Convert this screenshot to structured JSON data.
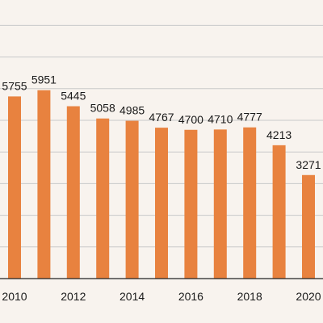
{
  "chart_data": {
    "type": "bar",
    "categories": [
      "2010",
      "2011",
      "2012",
      "2013",
      "2014",
      "2015",
      "2016",
      "2017",
      "2018",
      "2019",
      "2020"
    ],
    "x_tick_labels": [
      "2010",
      "2012",
      "2014",
      "2016",
      "2018",
      "2020"
    ],
    "values": [
      5755,
      5951,
      5445,
      5058,
      4985,
      4767,
      4700,
      4710,
      4777,
      4213,
      3271
    ],
    "data_labels": [
      "5755",
      "5951",
      "5445",
      "5058",
      "4985",
      "4767",
      "4700",
      "4710",
      "4777",
      "4213",
      "3271"
    ],
    "ylim": [
      0,
      8000
    ],
    "gridline_values": [
      1000,
      2000,
      3000,
      4000,
      5000,
      6000,
      7000,
      8000
    ],
    "grid": true,
    "bar_color": "#e8823f",
    "background": "#f8f3ee",
    "gridline_color": "#c9c9c9",
    "title": "",
    "xlabel": "",
    "ylabel": ""
  }
}
